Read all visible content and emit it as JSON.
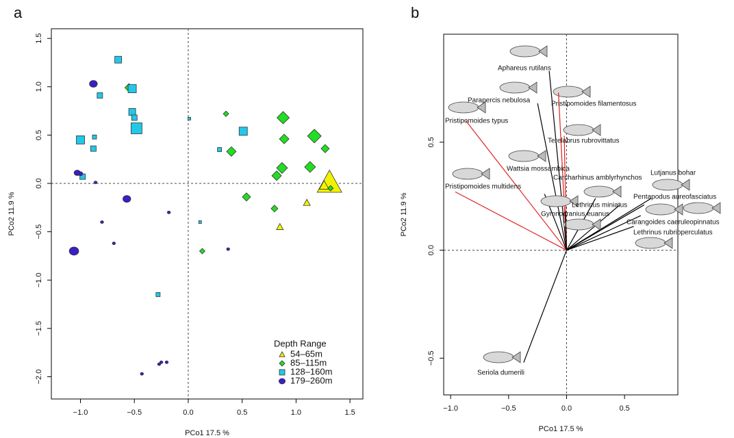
{
  "chart_data": [
    {
      "type": "scatter",
      "panel": "a",
      "xlabel": "PCo1   17.5 %",
      "ylabel": "PCo2   11.9 %",
      "xlim": [
        -1.27,
        1.62
      ],
      "ylim": [
        -2.23,
        1.6
      ],
      "xticks": [
        {
          "value": -1,
          "label": "−1.0"
        },
        {
          "value": -0.5,
          "label": "−0.5"
        },
        {
          "value": 0,
          "label": "0.0"
        },
        0.5,
        {
          "value": 1,
          "label": "1.0"
        },
        1.5
      ],
      "yticks": [
        1.5,
        {
          "value": 1,
          "label": "1.0"
        },
        0.5,
        {
          "value": 0,
          "label": "0.0"
        },
        {
          "value": -0.5,
          "label": "−0.5"
        },
        {
          "value": -1,
          "label": "−1.0"
        },
        {
          "value": -1.5,
          "label": "−1.5"
        },
        {
          "value": -2,
          "label": "−2.0"
        }
      ],
      "legend_title": "Depth Range",
      "legend": "bottom-right",
      "series": [
        {
          "name": "54–65m",
          "color": "#f2f200",
          "marker": "triangle",
          "x": [
            1.31,
            1.26,
            1.1,
            0.85
          ],
          "y": [
            0.01,
            -0.02,
            -0.2,
            -0.45
          ],
          "sizes": [
            18,
            7,
            5,
            5
          ]
        },
        {
          "name": "85–115m",
          "color": "#22dd22",
          "marker": "diamond",
          "x": [
            -0.55,
            0.35,
            0.88,
            1.17,
            0.89,
            1.27,
            0.4,
            0.87,
            1.13,
            0.82,
            0.54,
            0.8,
            0.13,
            1.32
          ],
          "y": [
            0.99,
            0.72,
            0.68,
            0.49,
            0.46,
            0.36,
            0.33,
            0.16,
            0.17,
            0.08,
            -0.14,
            -0.26,
            -0.7,
            -0.05
          ],
          "sizes": [
            6,
            4,
            9,
            10,
            7,
            6,
            7,
            8,
            8,
            7,
            6,
            5,
            4,
            4
          ]
        },
        {
          "name": "128–160m",
          "color": "#22c8e8",
          "marker": "square",
          "x": [
            -0.65,
            -0.52,
            -0.82,
            -0.52,
            -0.5,
            -0.48,
            -1.0,
            -0.87,
            -0.88,
            -0.98,
            0.01,
            0.51,
            0.29,
            0.11,
            -0.28
          ],
          "y": [
            1.28,
            0.98,
            0.91,
            0.74,
            0.68,
            0.57,
            0.45,
            0.48,
            0.36,
            0.07,
            0.67,
            0.54,
            0.35,
            -0.4,
            -1.15
          ],
          "sizes": [
            5,
            6,
            4,
            5,
            4,
            8,
            6,
            3,
            4,
            4,
            2,
            6,
            3,
            2,
            3
          ]
        },
        {
          "name": "179–260m",
          "color": "#3a1ec8",
          "marker": "circle",
          "x": [
            -0.88,
            -1.03,
            -1.0,
            -0.86,
            -0.57,
            -0.18,
            -0.8,
            -0.69,
            -1.06,
            0.37,
            -0.43,
            -0.27,
            -0.25,
            -0.2
          ],
          "y": [
            1.03,
            0.11,
            0.1,
            0.01,
            -0.16,
            -0.3,
            -0.4,
            -0.62,
            -0.7,
            -0.68,
            -1.97,
            -1.87,
            -1.85,
            -1.85
          ],
          "sizes": [
            5,
            4,
            3,
            2,
            5,
            2,
            2,
            2,
            6,
            2,
            2,
            2,
            2,
            2
          ]
        }
      ]
    },
    {
      "type": "biplot",
      "panel": "b",
      "xlabel": "PCo1   17.5 %",
      "ylabel": "PCo2   11.9 %",
      "xlim": [
        -1.06,
        0.96
      ],
      "ylim": [
        -0.67,
        1.0
      ],
      "xticks": [
        {
          "value": -1,
          "label": "−1.0"
        },
        {
          "value": -0.5,
          "label": "−0.5"
        },
        {
          "value": 0,
          "label": "0.0"
        },
        0.5
      ],
      "yticks": [
        {
          "value": -0.5,
          "label": "−0.5"
        },
        {
          "value": 0,
          "label": "0.0"
        },
        0.5
      ],
      "vectors": [
        {
          "name": "Aphareus rutilans",
          "x": -0.15,
          "y": 0.83,
          "color": "#000000"
        },
        {
          "name": "Parapercis nebulosa",
          "x": -0.25,
          "y": 0.68,
          "color": "#000000"
        },
        {
          "name": "Pristipomoides filamentosus",
          "x": -0.07,
          "y": 0.73,
          "color": "#e02020"
        },
        {
          "name": "Pristipomoides typus",
          "x": -0.87,
          "y": 0.6,
          "color": "#e02020"
        },
        {
          "name": "Terelabrus rubrovittatus",
          "x": -0.02,
          "y": 0.53,
          "color": "#e02020"
        },
        {
          "name": "Wattsia mossambica",
          "x": -0.19,
          "y": 0.26,
          "color": "#000000"
        },
        {
          "name": "Carcharhinus amblyrhynchos",
          "x": 0.25,
          "y": 0.24,
          "color": "#000000"
        },
        {
          "name": "Lutjanus bohar",
          "x": 0.73,
          "y": 0.24,
          "color": "#000000"
        },
        {
          "name": "Pentapodus aureofasciatus",
          "x": 0.67,
          "y": 0.21,
          "color": "#000000"
        },
        {
          "name": "Lethrinus miniatus",
          "x": 0.46,
          "y": 0.21,
          "color": "#000000"
        },
        {
          "name": "Gymnocranius euanus",
          "x": -0.01,
          "y": 0.18,
          "color": "#000000"
        },
        {
          "name": "Carangoides caeruleopinnatus",
          "x": 0.64,
          "y": 0.16,
          "color": "#000000"
        },
        {
          "name": "Lethrinus rubrioperculatus",
          "x": 0.58,
          "y": 0.11,
          "color": "#000000"
        },
        {
          "name": "Pristipomoides multidens",
          "x": -0.96,
          "y": 0.27,
          "color": "#e02020"
        },
        {
          "name": "Seriola dumerili",
          "x": -0.37,
          "y": -0.52,
          "color": "#000000"
        }
      ]
    }
  ]
}
